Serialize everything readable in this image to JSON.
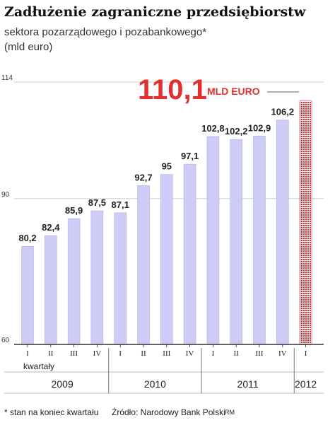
{
  "header": {
    "title": "Zadłużenie zagraniczne przedsiębiorstw",
    "subtitle": "sektora pozarządowego i pozabankowego*",
    "unit": "(mld euro)"
  },
  "callout": {
    "value": "110,1",
    "unit_label": "MLD EURO"
  },
  "footer": {
    "footnote": "* stan na koniec kwartału",
    "source": "Źródło: Narodowy Bank Polski",
    "author": "RM"
  },
  "colors": {
    "bar": "#ccccf6",
    "bar_edge": "#a9a9e0",
    "highlight": "#e23030",
    "grid": "#bdbdbd",
    "axis": "#333333"
  },
  "chart_data": {
    "type": "bar",
    "x_axis_caption": "kwartały",
    "ylim": [
      60,
      114
    ],
    "yticks": [
      60,
      90,
      114
    ],
    "grid": false,
    "categories": [
      "I",
      "II",
      "III",
      "IV",
      "I",
      "II",
      "III",
      "IV",
      "I",
      "II",
      "III",
      "IV",
      "I"
    ],
    "years": [
      {
        "label": "2009",
        "count": 4
      },
      {
        "label": "2010",
        "count": 4
      },
      {
        "label": "2011",
        "count": 4
      },
      {
        "label": "2012",
        "count": 1
      }
    ],
    "values": [
      80.2,
      82.4,
      85.9,
      87.5,
      87.1,
      92.7,
      95,
      97.1,
      102.8,
      102.2,
      102.9,
      106.2,
      110.1
    ],
    "labels": [
      "80,2",
      "82,4",
      "85,9",
      "87,5",
      "87,1",
      "92,7",
      "95",
      "97,1",
      "102,8",
      "102,2",
      "102,9",
      "106,2",
      ""
    ],
    "highlight_index": 12
  }
}
